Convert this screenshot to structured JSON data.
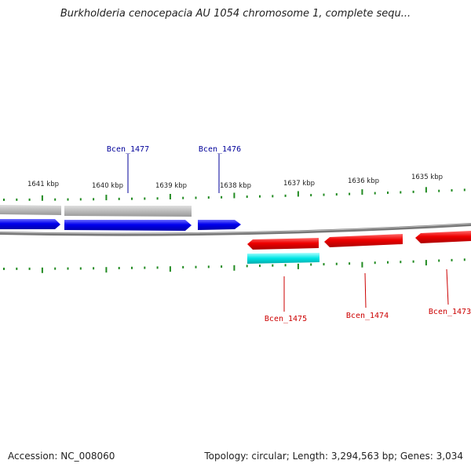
{
  "title": "Burkholderia cenocepacia AU 1054 chromosome 1, complete sequ...",
  "footer": {
    "accession": "Accession: NC_008060",
    "stats": "Topology: circular; Length: 3,294,563 bp; Genes: 3,034"
  },
  "colors": {
    "forward_gene": "#0000ee",
    "reverse_gene": "#ee0000",
    "forward_other": "#bbbbbb",
    "reverse_other": "#00dddd",
    "backbone": "#888888",
    "ticks": "#228b22",
    "forward_label": "#000099",
    "reverse_label": "#cc0000"
  },
  "ticks": [
    "1641 kbp",
    "1640 kbp",
    "1639 kbp",
    "1638 kbp",
    "1637 kbp",
    "1636 kbp",
    "1635 kbp"
  ],
  "genes": {
    "forward": [
      "Bcen_1477",
      "Bcen_1476"
    ],
    "reverse": [
      "Bcen_1475",
      "Bcen_1474",
      "Bcen_1473"
    ]
  }
}
